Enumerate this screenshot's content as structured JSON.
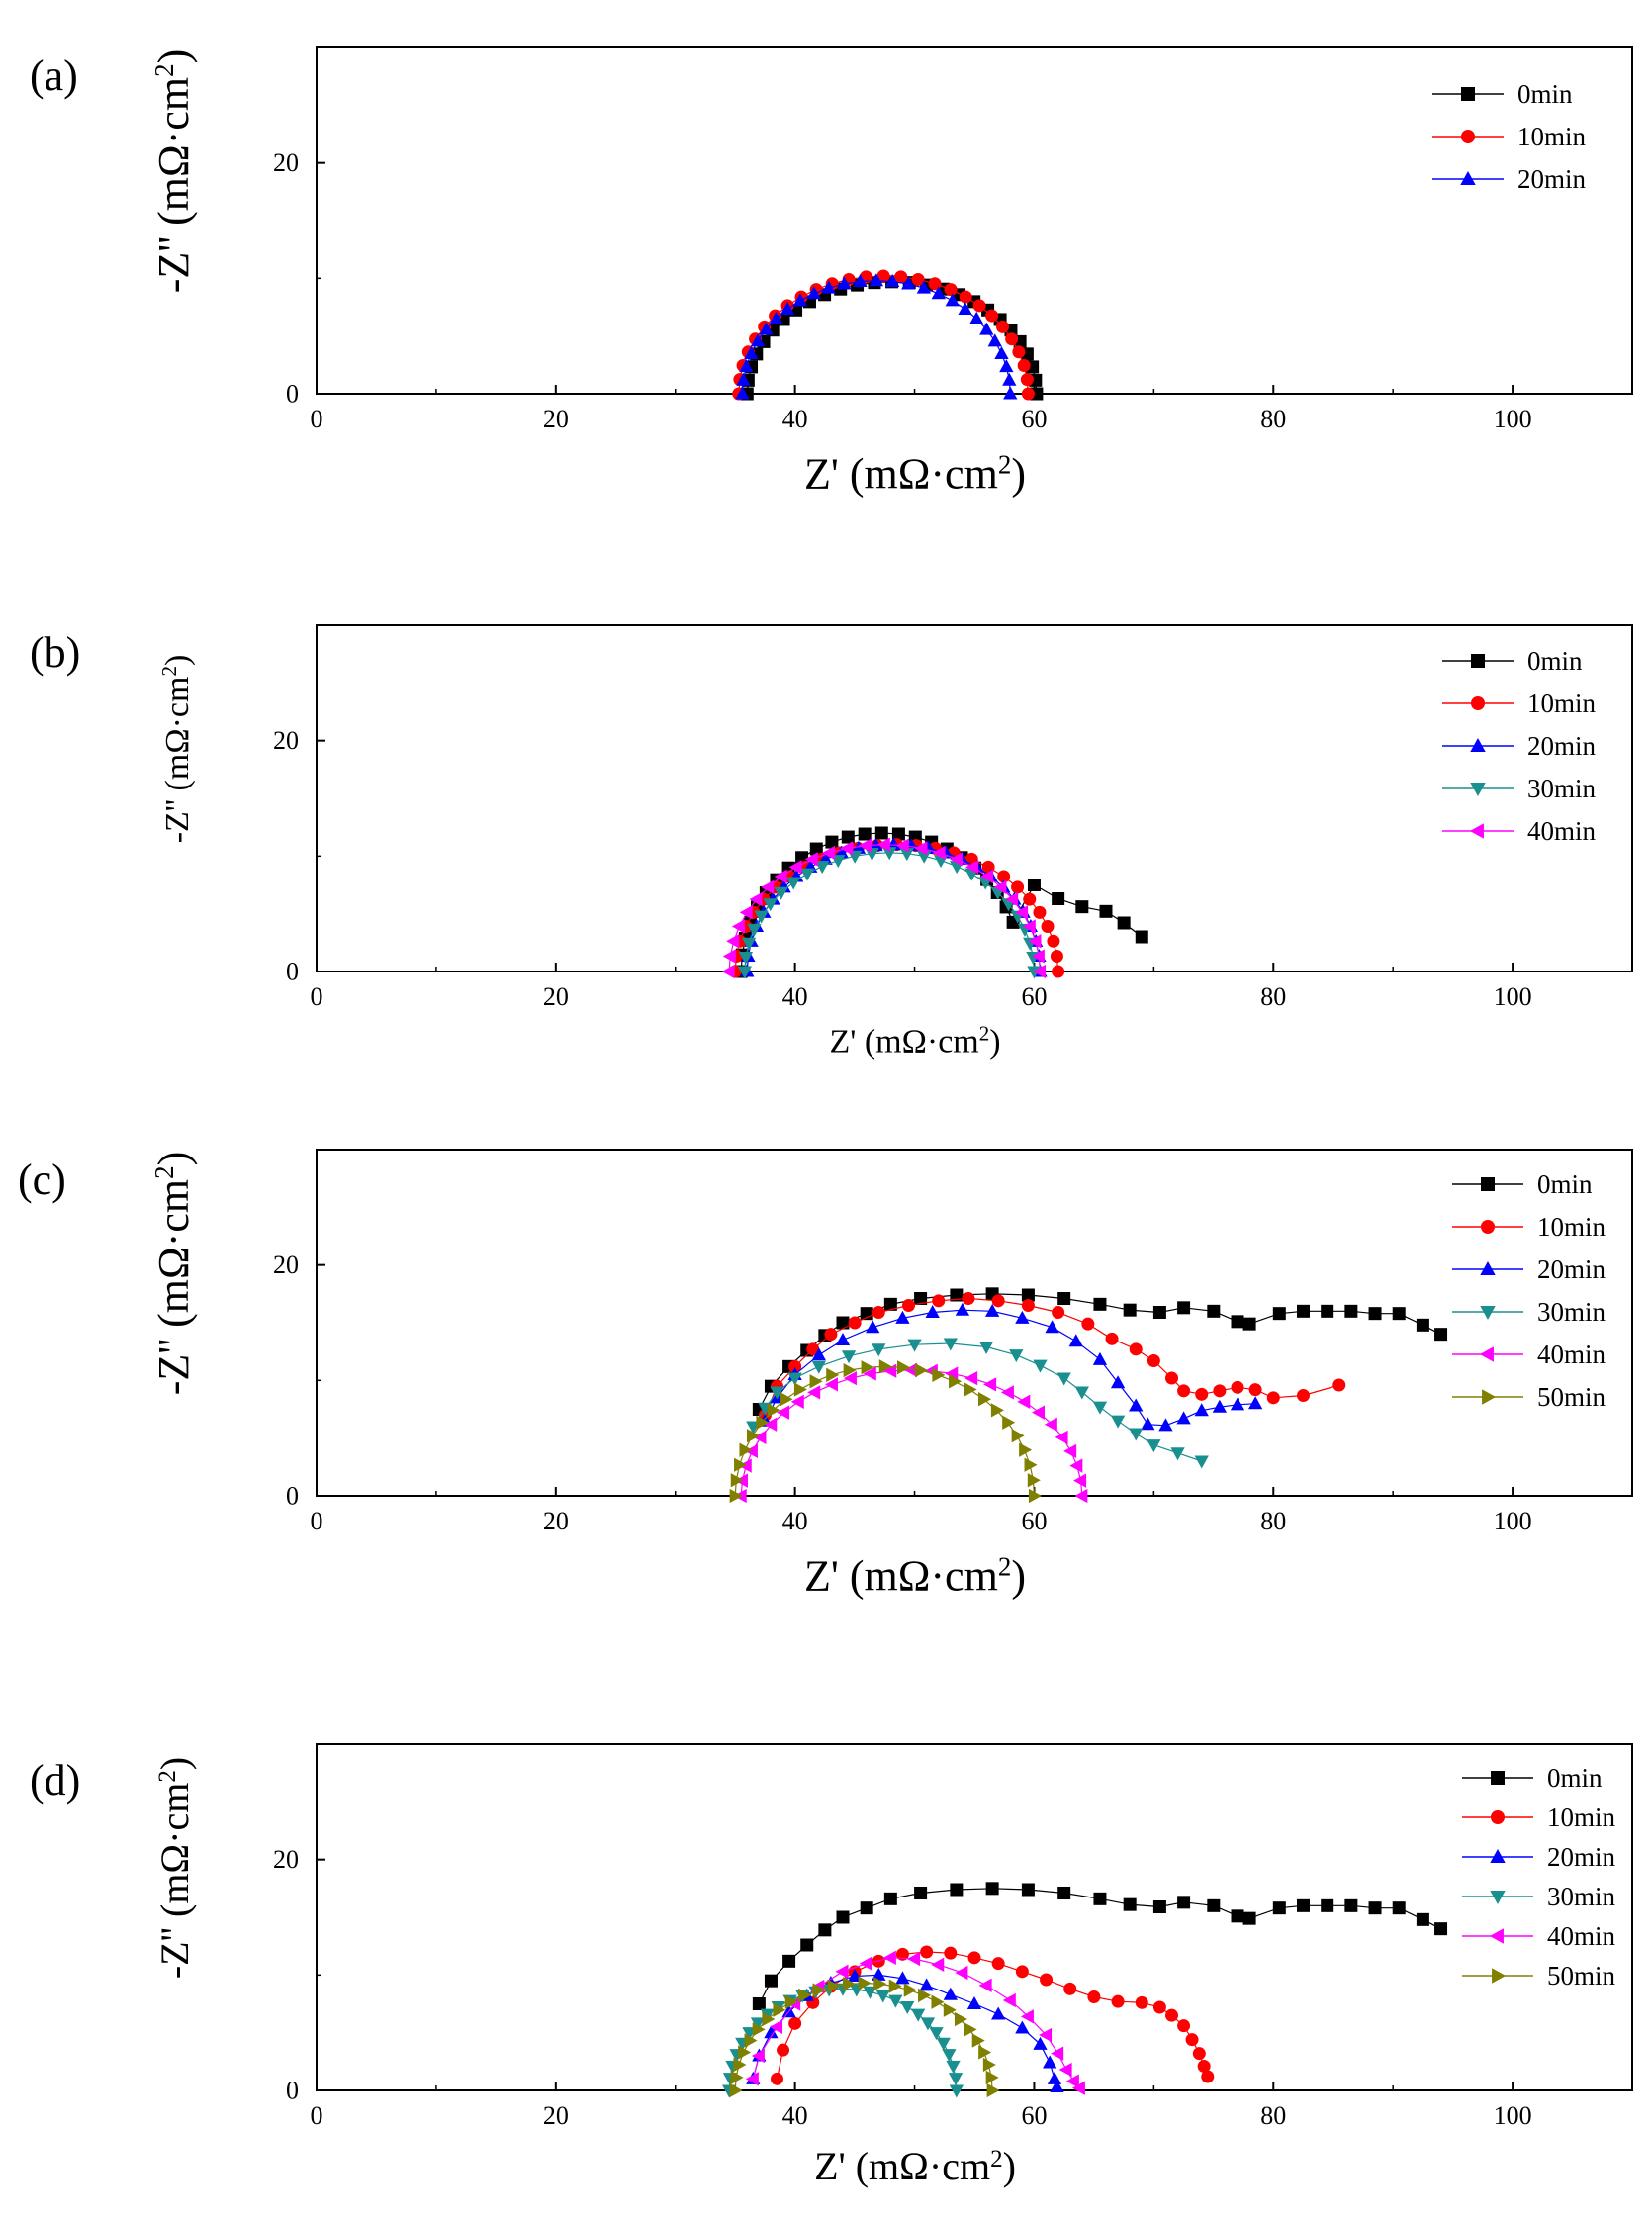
{
  "chart_data": [
    {
      "type": "scatter",
      "panel_label": "(a)",
      "xlabel": "Z' (mΩ·cm2)",
      "ylabel": "-Z'' (mΩ·cm2)",
      "xlim": [
        0,
        110
      ],
      "ylim": [
        0,
        30
      ],
      "xticks": [
        "0",
        "20",
        "40",
        "60",
        "80",
        "100"
      ],
      "yticks": [
        "0",
        "20"
      ],
      "legend_position": "top-right",
      "series": [
        {
          "name": "0min",
          "color": "#000000",
          "marker": "square",
          "arc": {
            "start": 36.0,
            "end": 60.2,
            "height": 9.7
          }
        },
        {
          "name": "10min",
          "color": "#ff0000",
          "marker": "circle",
          "arc": {
            "start": 35.3,
            "end": 59.5,
            "height": 10.2
          }
        },
        {
          "name": "20min",
          "color": "#0000ff",
          "marker": "triangle-up",
          "arc": {
            "start": 35.6,
            "end": 58.0,
            "height": 9.8
          }
        }
      ]
    },
    {
      "type": "scatter",
      "panel_label": "(b)",
      "xlabel": "Z' (mΩ·cm2)",
      "ylabel": "-Z'' (mΩ·cm2)",
      "xlim": [
        0,
        110
      ],
      "ylim": [
        0,
        30
      ],
      "xticks": [
        "0",
        "20",
        "40",
        "60",
        "80",
        "100"
      ],
      "yticks": [
        "0",
        "20"
      ],
      "legend_position": "top-right",
      "series": [
        {
          "name": "0min",
          "color": "#000000",
          "marker": "square",
          "arc": {
            "start": 35.5,
            "end": 59.0,
            "height": 12.0
          },
          "tail": [
            [
              60,
              7.5
            ],
            [
              62,
              6.3
            ],
            [
              64,
              5.6
            ],
            [
              66,
              5.2
            ],
            [
              67.5,
              4.2
            ],
            [
              69,
              3.0
            ]
          ]
        },
        {
          "name": "10min",
          "color": "#ff0000",
          "marker": "circle",
          "arc": {
            "start": 35.0,
            "end": 62.0,
            "height": 11.0
          }
        },
        {
          "name": "20min",
          "color": "#0000ff",
          "marker": "triangle-up",
          "arc": {
            "start": 36.0,
            "end": 60.5,
            "height": 11.0
          }
        },
        {
          "name": "30min",
          "color": "#1a8f8f",
          "marker": "triangle-down",
          "arc": {
            "start": 35.8,
            "end": 60.0,
            "height": 10.3
          }
        },
        {
          "name": "40min",
          "color": "#ff00ff",
          "marker": "triangle-left",
          "arc": {
            "start": 34.5,
            "end": 60.5,
            "height": 11.0
          }
        }
      ]
    },
    {
      "type": "scatter",
      "panel_label": "(c)",
      "xlabel": "Z' (mΩ·cm2)",
      "ylabel": "-Z'' (mΩ·cm2)",
      "xlim": [
        0,
        110
      ],
      "ylim": [
        0,
        30
      ],
      "xticks": [
        "0",
        "20",
        "40",
        "60",
        "80",
        "100"
      ],
      "yticks": [
        "0",
        "20"
      ],
      "legend_position": "top-right",
      "series": [
        {
          "name": "0min",
          "color": "#000000",
          "marker": "square",
          "points": [
            [
              37,
              7.5
            ],
            [
              38,
              9.5
            ],
            [
              39.5,
              11.2
            ],
            [
              41,
              12.6
            ],
            [
              42.5,
              13.9
            ],
            [
              44,
              15.0
            ],
            [
              46,
              15.8
            ],
            [
              48,
              16.6
            ],
            [
              50.5,
              17.1
            ],
            [
              53.5,
              17.4
            ],
            [
              56.5,
              17.5
            ],
            [
              59.5,
              17.4
            ],
            [
              62.5,
              17.1
            ],
            [
              65.5,
              16.6
            ],
            [
              68,
              16.1
            ],
            [
              70.5,
              15.9
            ],
            [
              72.5,
              16.3
            ],
            [
              75,
              16.0
            ],
            [
              77,
              15.1
            ],
            [
              78,
              14.9
            ],
            [
              80.5,
              15.8
            ],
            [
              82.5,
              16.0
            ],
            [
              84.5,
              16.0
            ],
            [
              86.5,
              16.0
            ],
            [
              88.5,
              15.8
            ],
            [
              90.5,
              15.8
            ],
            [
              92.5,
              14.8
            ],
            [
              94,
              14.0
            ]
          ]
        },
        {
          "name": "10min",
          "color": "#ff0000",
          "marker": "circle",
          "points": [
            [
              37.5,
              7.0
            ],
            [
              38.5,
              9.5
            ],
            [
              40,
              11.2
            ],
            [
              41.5,
              12.7
            ],
            [
              43,
              14.0
            ],
            [
              45,
              15.0
            ],
            [
              47,
              15.9
            ],
            [
              49.5,
              16.5
            ],
            [
              52,
              16.9
            ],
            [
              54.5,
              17.1
            ],
            [
              57,
              16.9
            ],
            [
              59.5,
              16.5
            ],
            [
              62,
              15.9
            ],
            [
              64.5,
              14.9
            ],
            [
              66.5,
              13.6
            ],
            [
              68.5,
              12.7
            ],
            [
              70,
              11.7
            ],
            [
              71.5,
              10.2
            ],
            [
              72.5,
              9.1
            ],
            [
              74,
              8.8
            ],
            [
              75.5,
              9.1
            ],
            [
              77,
              9.4
            ],
            [
              78.5,
              9.2
            ],
            [
              80,
              8.5
            ],
            [
              82.5,
              8.7
            ],
            [
              85.5,
              9.6
            ]
          ]
        },
        {
          "name": "20min",
          "color": "#0000ff",
          "marker": "triangle-up",
          "points": [
            [
              37.5,
              6.5
            ],
            [
              38.5,
              8.5
            ],
            [
              40,
              10.5
            ],
            [
              42,
              12.2
            ],
            [
              44,
              13.5
            ],
            [
              46.5,
              14.6
            ],
            [
              49,
              15.4
            ],
            [
              51.5,
              15.9
            ],
            [
              54,
              16.1
            ],
            [
              56.5,
              16.0
            ],
            [
              59,
              15.4
            ],
            [
              61.5,
              14.6
            ],
            [
              63.5,
              13.4
            ],
            [
              65.5,
              11.8
            ],
            [
              67,
              9.8
            ],
            [
              68.5,
              7.8
            ],
            [
              69.5,
              6.2
            ],
            [
              71,
              6.1
            ],
            [
              72.5,
              6.7
            ],
            [
              74,
              7.4
            ],
            [
              75.5,
              7.7
            ],
            [
              77,
              7.9
            ],
            [
              78.5,
              8.0
            ]
          ]
        },
        {
          "name": "30min",
          "color": "#1a8f8f",
          "marker": "triangle-down",
          "points": [
            [
              36.5,
              6.0
            ],
            [
              37.5,
              7.6
            ],
            [
              38.5,
              9.0
            ],
            [
              40,
              10.2
            ],
            [
              42,
              11.2
            ],
            [
              44.5,
              12.1
            ],
            [
              47,
              12.7
            ],
            [
              50,
              13.1
            ],
            [
              53,
              13.2
            ],
            [
              56,
              12.9
            ],
            [
              58.5,
              12.2
            ],
            [
              60.5,
              11.3
            ],
            [
              62.5,
              10.2
            ],
            [
              64,
              9.0
            ],
            [
              65.5,
              7.7
            ],
            [
              67,
              6.5
            ],
            [
              68.5,
              5.4
            ],
            [
              70,
              4.4
            ],
            [
              72,
              3.7
            ],
            [
              74,
              3.0
            ]
          ]
        },
        {
          "name": "40min",
          "color": "#ff00ff",
          "marker": "triangle-left",
          "arc": {
            "start": 35.5,
            "end": 64.0,
            "height": 10.9
          }
        },
        {
          "name": "50min",
          "color": "#808000",
          "marker": "triangle-right",
          "arc": {
            "start": 35.0,
            "end": 60.0,
            "height": 11.2
          }
        }
      ]
    },
    {
      "type": "scatter",
      "panel_label": "(d)",
      "xlabel": "Z' (mΩ·cm2)",
      "ylabel": "-Z'' (mΩ·cm2)",
      "xlim": [
        0,
        110
      ],
      "ylim": [
        0,
        30
      ],
      "xticks": [
        "0",
        "20",
        "40",
        "60",
        "80",
        "100"
      ],
      "yticks": [
        "0",
        "20"
      ],
      "legend_position": "top-right",
      "series": [
        {
          "name": "0min",
          "color": "#000000",
          "marker": "square",
          "points": [
            [
              37,
              7.5
            ],
            [
              38,
              9.5
            ],
            [
              39.5,
              11.2
            ],
            [
              41,
              12.6
            ],
            [
              42.5,
              13.9
            ],
            [
              44,
              15.0
            ],
            [
              46,
              15.8
            ],
            [
              48,
              16.6
            ],
            [
              50.5,
              17.1
            ],
            [
              53.5,
              17.4
            ],
            [
              56.5,
              17.5
            ],
            [
              59.5,
              17.4
            ],
            [
              62.5,
              17.1
            ],
            [
              65.5,
              16.6
            ],
            [
              68,
              16.1
            ],
            [
              70.5,
              15.9
            ],
            [
              72.5,
              16.3
            ],
            [
              75,
              16.0
            ],
            [
              77,
              15.1
            ],
            [
              78,
              14.9
            ],
            [
              80.5,
              15.8
            ],
            [
              82.5,
              16.0
            ],
            [
              84.5,
              16.0
            ],
            [
              86.5,
              16.0
            ],
            [
              88.5,
              15.8
            ],
            [
              90.5,
              15.8
            ],
            [
              92.5,
              14.8
            ],
            [
              94,
              14.0
            ]
          ]
        },
        {
          "name": "10min",
          "color": "#ff0000",
          "marker": "circle",
          "points": [
            [
              38.5,
              1.0
            ],
            [
              39,
              3.5
            ],
            [
              40,
              5.8
            ],
            [
              41.5,
              7.6
            ],
            [
              43,
              9.0
            ],
            [
              45,
              10.3
            ],
            [
              47,
              11.2
            ],
            [
              49,
              11.8
            ],
            [
              51,
              12.0
            ],
            [
              53,
              11.9
            ],
            [
              55,
              11.5
            ],
            [
              57,
              11.0
            ],
            [
              59,
              10.3
            ],
            [
              61,
              9.6
            ],
            [
              63,
              8.8
            ],
            [
              65,
              8.1
            ],
            [
              67,
              7.7
            ],
            [
              69,
              7.6
            ],
            [
              70.5,
              7.2
            ],
            [
              71.5,
              6.5
            ],
            [
              72.5,
              5.6
            ],
            [
              73.2,
              4.4
            ],
            [
              73.8,
              3.2
            ],
            [
              74.2,
              2.1
            ],
            [
              74.5,
              1.2
            ]
          ]
        },
        {
          "name": "20min",
          "color": "#0000ff",
          "marker": "triangle-up",
          "points": [
            [
              36.5,
              1.0
            ],
            [
              37,
              3.0
            ],
            [
              38,
              5.0
            ],
            [
              39.5,
              6.8
            ],
            [
              41,
              8.2
            ],
            [
              43,
              9.3
            ],
            [
              45,
              9.9
            ],
            [
              47,
              10.0
            ],
            [
              49,
              9.7
            ],
            [
              51,
              9.1
            ],
            [
              53,
              8.3
            ],
            [
              55,
              7.5
            ],
            [
              57,
              6.6
            ],
            [
              59,
              5.4
            ],
            [
              60.5,
              4.0
            ],
            [
              61.3,
              2.4
            ],
            [
              61.7,
              1.0
            ],
            [
              61.9,
              0.3
            ]
          ]
        },
        {
          "name": "30min",
          "color": "#1a8f8f",
          "marker": "triangle-down",
          "arc": {
            "start": 34.5,
            "end": 53.5,
            "height": 8.8
          }
        },
        {
          "name": "40min",
          "color": "#ff00ff",
          "marker": "triangle-left",
          "points": [
            [
              36.5,
              1.0
            ],
            [
              37,
              3.0
            ],
            [
              38.5,
              5.5
            ],
            [
              40,
              7.5
            ],
            [
              42,
              9.0
            ],
            [
              44,
              10.3
            ],
            [
              46,
              11.0
            ],
            [
              48,
              11.5
            ],
            [
              50,
              11.4
            ],
            [
              52,
              10.9
            ],
            [
              54,
              10.2
            ],
            [
              56,
              9.1
            ],
            [
              58,
              7.8
            ],
            [
              59.5,
              6.4
            ],
            [
              61,
              4.8
            ],
            [
              62,
              3.2
            ],
            [
              62.7,
              1.8
            ],
            [
              63.3,
              0.8
            ],
            [
              63.8,
              0.2
            ]
          ]
        },
        {
          "name": "50min",
          "color": "#808000",
          "marker": "triangle-right",
          "arc": {
            "start": 35.0,
            "end": 56.5,
            "height": 9.3
          }
        }
      ]
    }
  ]
}
